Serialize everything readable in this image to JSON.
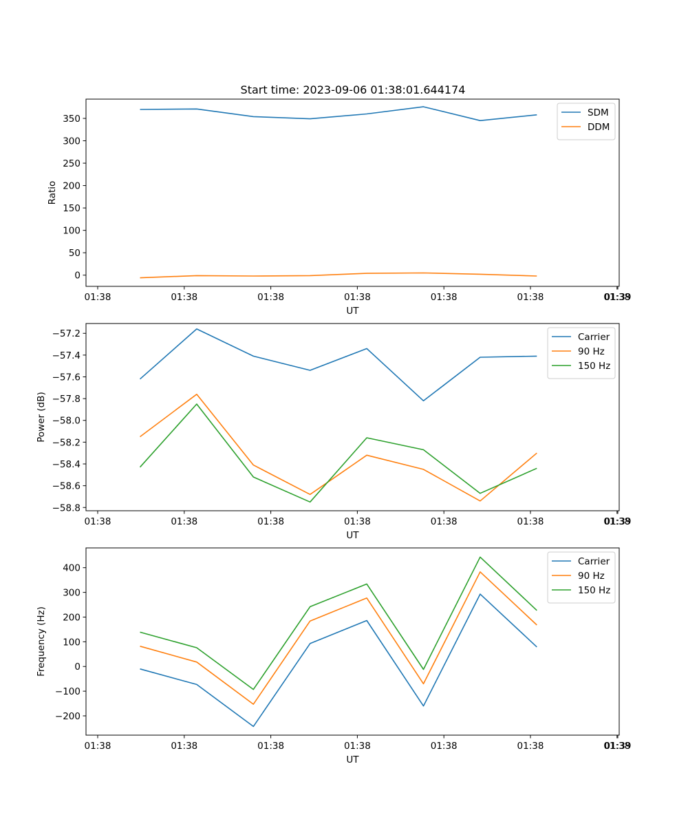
{
  "figure_title": "Start time: 2023-09-06 01:38:01.644174",
  "chart_data": [
    {
      "type": "line",
      "title": "Start time: 2023-09-06 01:38:01.644174",
      "xlabel": "UT",
      "ylabel": "Ratio",
      "x_tick_labels": [
        "01:38",
        "01:38",
        "01:38",
        "01:38",
        "01:38",
        "01:38",
        "01:38",
        "01:39"
      ],
      "y_ticks": [
        0,
        50,
        100,
        150,
        200,
        250,
        300,
        350
      ],
      "y_tick_labels": [
        "0",
        "50",
        "100",
        "150",
        "200",
        "250",
        "300",
        "350"
      ],
      "ylim": [
        -25,
        393
      ],
      "xlim": [
        -0.2,
        9.0
      ],
      "x": [
        0.75,
        1.75,
        2.75,
        3.75,
        4.75,
        5.75,
        6.75,
        7.75
      ],
      "legend_position": "top-right",
      "series": [
        {
          "name": "SDM",
          "color": "#1f77b4",
          "values": [
            370,
            371,
            354,
            349,
            360,
            376,
            345,
            358
          ]
        },
        {
          "name": "DDM",
          "color": "#ff7f0e",
          "values": [
            -6,
            -1,
            -2,
            -1,
            4,
            5,
            2,
            -2
          ]
        }
      ]
    },
    {
      "type": "line",
      "title": "",
      "xlabel": "UT",
      "ylabel": "Power (dB)",
      "x_tick_labels": [
        "01:38",
        "01:38",
        "01:38",
        "01:38",
        "01:38",
        "01:38",
        "01:38",
        "01:39"
      ],
      "y_ticks": [
        -58.8,
        -58.6,
        -58.4,
        -58.2,
        -58.0,
        -57.8,
        -57.6,
        -57.4,
        -57.2
      ],
      "y_tick_labels": [
        "−58.8",
        "−58.6",
        "−58.4",
        "−58.2",
        "−58.0",
        "−57.8",
        "−57.6",
        "−57.4",
        "−57.2"
      ],
      "ylim": [
        -58.83,
        -57.11
      ],
      "xlim": [
        -0.2,
        9.0
      ],
      "x": [
        0.75,
        1.75,
        2.75,
        3.75,
        4.75,
        5.75,
        6.75,
        7.75
      ],
      "legend_position": "top-right",
      "series": [
        {
          "name": "Carrier",
          "color": "#1f77b4",
          "values": [
            -57.62,
            -57.16,
            -57.41,
            -57.54,
            -57.34,
            -57.82,
            -57.42,
            -57.41
          ]
        },
        {
          "name": "90 Hz",
          "color": "#ff7f0e",
          "values": [
            -58.15,
            -57.76,
            -58.41,
            -58.68,
            -58.32,
            -58.45,
            -58.74,
            -58.3
          ]
        },
        {
          "name": "150 Hz",
          "color": "#2ca02c",
          "values": [
            -58.43,
            -57.85,
            -58.52,
            -58.75,
            -58.16,
            -58.27,
            -58.67,
            -58.44
          ]
        }
      ]
    },
    {
      "type": "line",
      "title": "",
      "xlabel": "UT",
      "ylabel": "Frequency (Hz)",
      "x_tick_labels": [
        "01:38",
        "01:38",
        "01:38",
        "01:38",
        "01:38",
        "01:38",
        "01:38",
        "01:39"
      ],
      "y_ticks": [
        -200,
        -100,
        0,
        100,
        200,
        300,
        400
      ],
      "y_tick_labels": [
        "−200",
        "−100",
        "0",
        "100",
        "200",
        "300",
        "400"
      ],
      "ylim": [
        -278,
        480
      ],
      "xlim": [
        -0.2,
        9.0
      ],
      "x": [
        0.75,
        1.75,
        2.75,
        3.75,
        4.75,
        5.75,
        6.75,
        7.75
      ],
      "legend_position": "top-right",
      "series": [
        {
          "name": "Carrier",
          "color": "#1f77b4",
          "values": [
            -10,
            -73,
            -243,
            93,
            186,
            -160,
            293,
            79
          ]
        },
        {
          "name": "90 Hz",
          "color": "#ff7f0e",
          "values": [
            82,
            18,
            -153,
            184,
            277,
            -70,
            383,
            168
          ]
        },
        {
          "name": "150 Hz",
          "color": "#2ca02c",
          "values": [
            139,
            76,
            -93,
            242,
            334,
            -12,
            443,
            227
          ]
        }
      ]
    }
  ]
}
